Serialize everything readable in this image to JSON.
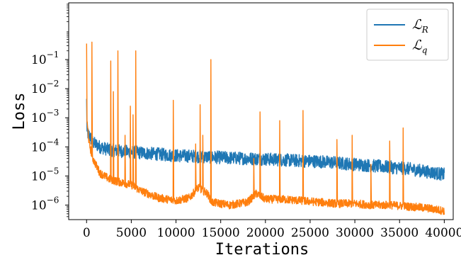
{
  "chart_data": {
    "type": "line",
    "title": "",
    "xlabel": "Iterations",
    "ylabel": "Loss",
    "xlim": [
      -2000,
      41000
    ],
    "ylim_log10": [
      -6.5,
      0.95
    ],
    "yscale": "log",
    "grid": false,
    "legend_position": "top-right",
    "x_ticks": [
      0,
      5000,
      10000,
      15000,
      20000,
      25000,
      30000,
      35000,
      40000
    ],
    "x_tick_labels": [
      "0",
      "5000",
      "10000",
      "15000",
      "20000",
      "25000",
      "30000",
      "35000",
      "40000"
    ],
    "y_ticks": [
      {
        "base": "10",
        "exp": "−1",
        "value": -1
      },
      {
        "base": "10",
        "exp": "−2",
        "value": -2
      },
      {
        "base": "10",
        "exp": "−3",
        "value": -3
      },
      {
        "base": "10",
        "exp": "−4",
        "value": -4
      },
      {
        "base": "10",
        "exp": "−5",
        "value": -5
      },
      {
        "base": "10",
        "exp": "−6",
        "value": -6
      }
    ],
    "series": [
      {
        "name": "L_R",
        "legend_main": "ℒ",
        "legend_sub": "R",
        "color": "#1f77b4",
        "x": [
          0,
          300,
          700,
          1500,
          2500,
          4000,
          6000,
          8000,
          10000,
          12000,
          14000,
          16000,
          18000,
          20000,
          22000,
          24000,
          26000,
          28000,
          30000,
          32000,
          34000,
          36000,
          38000,
          40000
        ],
        "log10_y": [
          -3.5,
          -3.6,
          -3.85,
          -4.0,
          -4.1,
          -4.15,
          -4.2,
          -4.25,
          -4.3,
          -4.32,
          -4.35,
          -4.38,
          -4.4,
          -4.42,
          -4.45,
          -4.48,
          -4.5,
          -4.55,
          -4.6,
          -4.65,
          -4.7,
          -4.75,
          -4.85,
          -4.95
        ],
        "noise": 0.45,
        "spikes": [
          {
            "x": 0,
            "log10_y": -2.35
          }
        ]
      },
      {
        "name": "L_q",
        "legend_main": "ℒ",
        "legend_sub": "q",
        "color": "#ff7f0e",
        "x": [
          0,
          300,
          700,
          1500,
          2500,
          3500,
          5000,
          6000,
          8000,
          10000,
          11500,
          12500,
          13500,
          14000,
          16000,
          18000,
          19000,
          20000,
          22000,
          24000,
          26000,
          28000,
          30000,
          32000,
          34000,
          36000,
          38000,
          40000
        ],
        "log10_y": [
          -3.0,
          -3.9,
          -4.4,
          -4.9,
          -5.1,
          -5.2,
          -5.3,
          -5.5,
          -5.75,
          -5.85,
          -5.75,
          -5.4,
          -5.6,
          -5.9,
          -6.0,
          -5.9,
          -5.6,
          -5.8,
          -5.8,
          -5.85,
          -5.9,
          -5.95,
          -5.95,
          -6.0,
          -6.0,
          -6.05,
          -6.1,
          -6.2
        ],
        "noise": 0.28,
        "spikes": [
          {
            "x": 0,
            "log10_y": -0.45
          },
          {
            "x": 600,
            "log10_y": -0.4
          },
          {
            "x": 2700,
            "log10_y": -1.05
          },
          {
            "x": 3000,
            "log10_y": -2.1
          },
          {
            "x": 3500,
            "log10_y": -0.7
          },
          {
            "x": 4300,
            "log10_y": -3.6
          },
          {
            "x": 4900,
            "log10_y": -2.6
          },
          {
            "x": 5200,
            "log10_y": -2.9
          },
          {
            "x": 5500,
            "log10_y": -0.7
          },
          {
            "x": 9700,
            "log10_y": -2.4
          },
          {
            "x": 12200,
            "log10_y": -3.9
          },
          {
            "x": 12700,
            "log10_y": -2.55
          },
          {
            "x": 13000,
            "log10_y": -3.6
          },
          {
            "x": 13900,
            "log10_y": -1.0
          },
          {
            "x": 18700,
            "log10_y": -4.4
          },
          {
            "x": 19400,
            "log10_y": -2.8
          },
          {
            "x": 21600,
            "log10_y": -3.1
          },
          {
            "x": 24200,
            "log10_y": -2.75
          },
          {
            "x": 28000,
            "log10_y": -3.75
          },
          {
            "x": 29700,
            "log10_y": -3.6
          },
          {
            "x": 31800,
            "log10_y": -4.6
          },
          {
            "x": 33900,
            "log10_y": -3.8
          },
          {
            "x": 35400,
            "log10_y": -3.35
          }
        ]
      }
    ]
  }
}
